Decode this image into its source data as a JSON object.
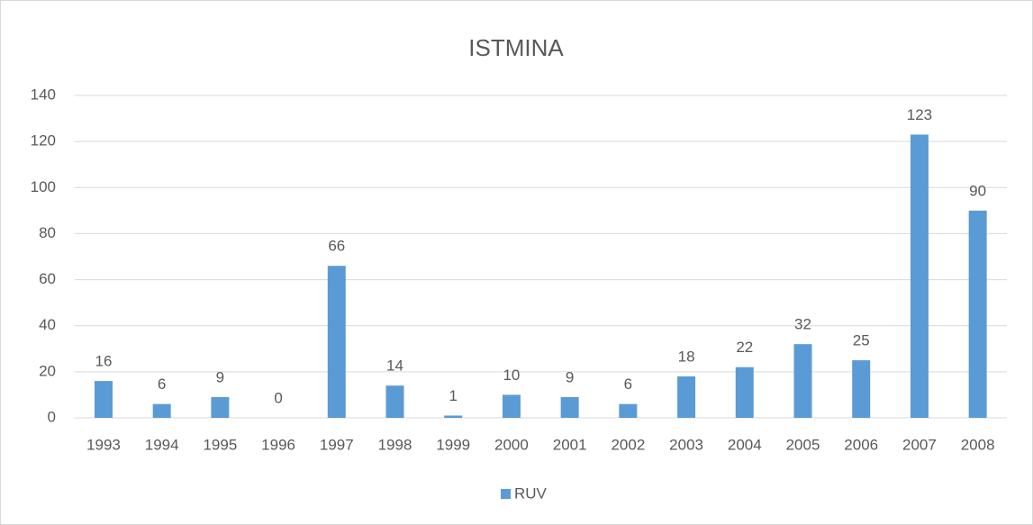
{
  "chart_data": {
    "type": "bar",
    "title": "ISTMINA",
    "categories": [
      "1993",
      "1994",
      "1995",
      "1996",
      "1997",
      "1998",
      "1999",
      "2000",
      "2001",
      "2002",
      "2003",
      "2004",
      "2005",
      "2006",
      "2007",
      "2008"
    ],
    "series": [
      {
        "name": "RUV",
        "color": "#5b9bd5",
        "values": [
          16,
          6,
          9,
          0,
          66,
          14,
          1,
          10,
          9,
          6,
          18,
          22,
          32,
          25,
          123,
          90
        ]
      }
    ],
    "ylim": [
      0,
      140
    ],
    "yticks": [
      0,
      20,
      40,
      60,
      80,
      100,
      120,
      140
    ],
    "grid": true,
    "legend": "bottom"
  }
}
